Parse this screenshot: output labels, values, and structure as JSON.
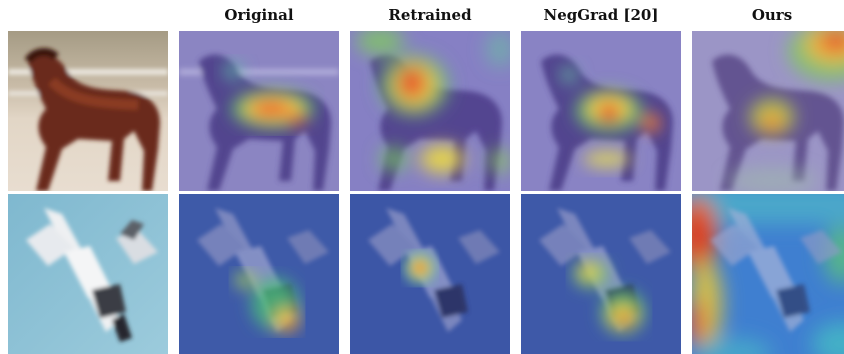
{
  "figure": {
    "columns": [
      {
        "label": ""
      },
      {
        "label": "Original"
      },
      {
        "label": "Retrained"
      },
      {
        "label": "NegGrad [20]"
      },
      {
        "label": "Ours"
      }
    ],
    "rows": [
      {
        "subject": "horse",
        "background": "#cfc3b3"
      },
      {
        "subject": "airplane",
        "background": "#8fc3d8"
      }
    ]
  }
}
